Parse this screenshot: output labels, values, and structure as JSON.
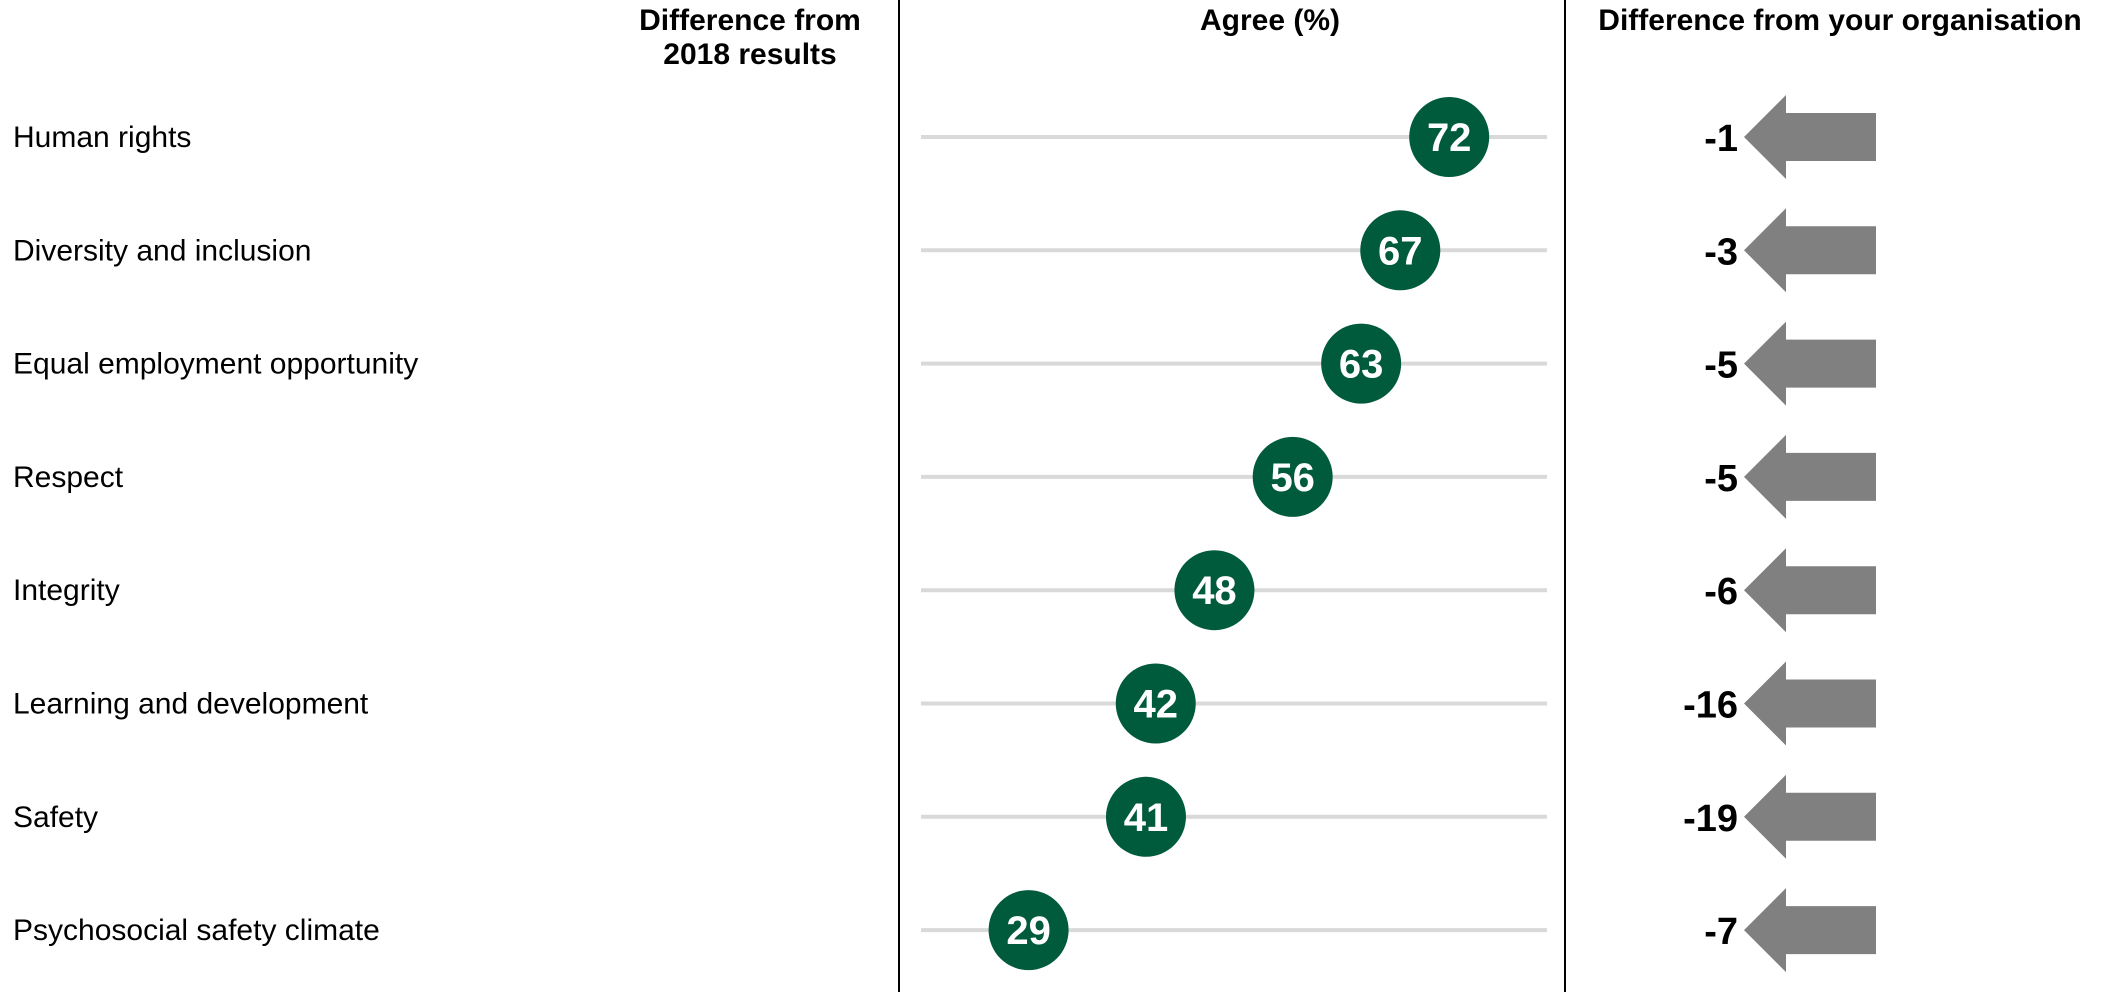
{
  "headers": {
    "diff_2018_line1": "Difference from",
    "diff_2018_line2": "2018 results",
    "agree": "Agree (%)",
    "diff_org": "Difference from your organisation"
  },
  "colors": {
    "dot": "#005a3c",
    "track": "#d9d9d9",
    "arrow": "#808080"
  },
  "chart_data": {
    "type": "scatter",
    "categories": [
      "Human rights",
      "Diversity and inclusion",
      "Equal employment opportunity",
      "Respect",
      "Integrity",
      "Learning and development",
      "Safety",
      "Psychosocial safety climate"
    ],
    "series": [
      {
        "name": "Agree (%)",
        "values": [
          72,
          67,
          63,
          56,
          48,
          42,
          41,
          29
        ]
      },
      {
        "name": "Difference from your organisation",
        "values": [
          -1,
          -3,
          -5,
          -5,
          -6,
          -16,
          -19,
          -7
        ]
      }
    ],
    "xlim": [
      18,
      82
    ],
    "grid": false,
    "legend": "none"
  }
}
